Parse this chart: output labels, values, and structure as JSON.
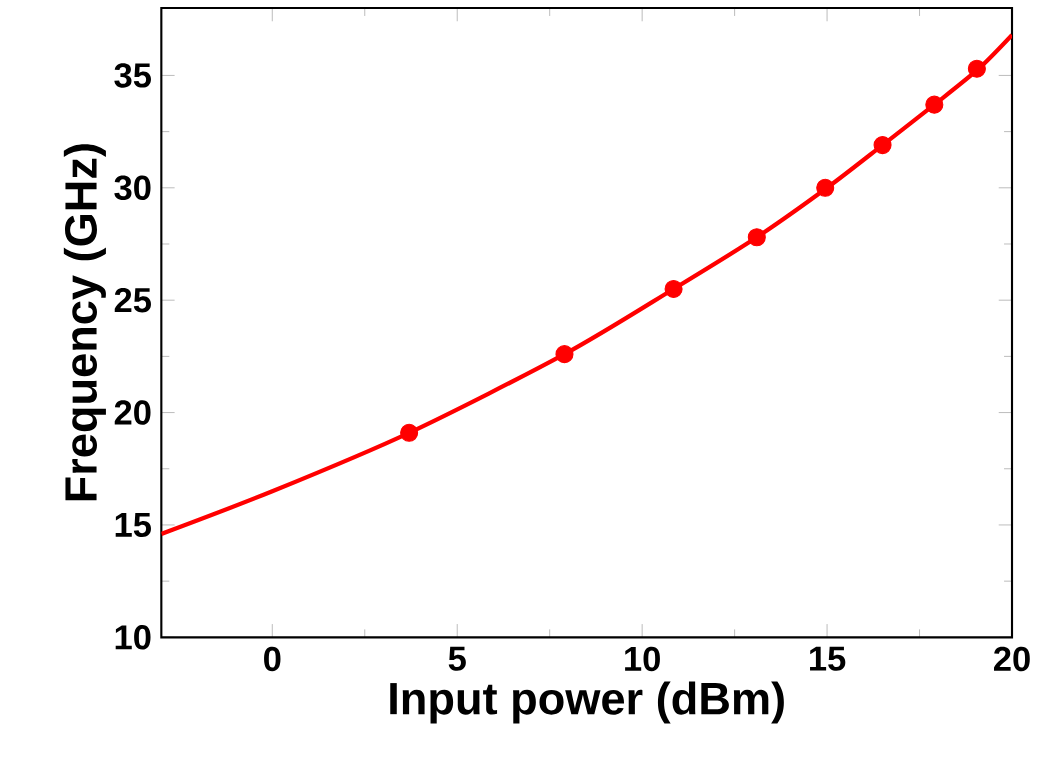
{
  "chart_data": {
    "type": "scatter",
    "xlabel": "Input power (dBm)",
    "ylabel": "Frequency (GHz)",
    "xlim": [
      -3,
      20
    ],
    "ylim": [
      10,
      38
    ],
    "xticks": [
      0,
      5,
      10,
      15,
      20
    ],
    "yticks": [
      10,
      15,
      20,
      25,
      30,
      35
    ],
    "grid": false,
    "series": [
      {
        "type": "line",
        "color": "#ff0000",
        "marker": "none",
        "x": [
          -3,
          0,
          3.7,
          7.9,
          10.85,
          13.1,
          15,
          16.5,
          17.9,
          19.1,
          20
        ],
        "values": [
          14.6,
          16.5,
          19.1,
          22.6,
          25.5,
          27.8,
          30.0,
          31.9,
          33.7,
          35.3,
          36.8
        ]
      },
      {
        "color": "#ff0000",
        "marker": "circle",
        "x": [
          3.7,
          7.9,
          10.85,
          13.1,
          14.95,
          16.5,
          17.9,
          19.05
        ],
        "values": [
          19.1,
          22.6,
          25.5,
          27.8,
          30.0,
          31.9,
          33.7,
          35.3
        ]
      }
    ]
  }
}
